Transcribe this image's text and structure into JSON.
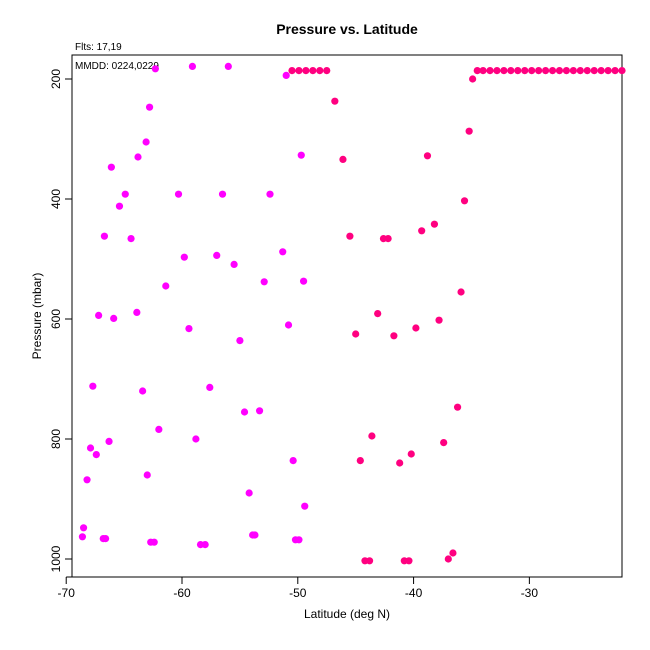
{
  "annotations": {
    "flts": "Flts: 17,19",
    "mmdd": "MMDD: 0224,0229"
  },
  "chart_data": {
    "type": "scatter",
    "title": "Pressure vs. Latitude",
    "xlabel": "Latitude (deg N)",
    "ylabel": "Pressure (mbar)",
    "xlim": [
      -69.5,
      -22
    ],
    "ylim": [
      1030,
      160
    ],
    "y_reversed": true,
    "xticks": [
      -70,
      -60,
      -50,
      -40,
      -30
    ],
    "yticks": [
      200,
      400,
      600,
      800,
      1000
    ],
    "grid": false,
    "series": [
      {
        "color": "#ff00ff",
        "points": [
          [
            -68.6,
            963
          ],
          [
            -68.5,
            948
          ],
          [
            -68.2,
            868
          ],
          [
            -67.9,
            815
          ],
          [
            -67.7,
            712
          ],
          [
            -67.4,
            826
          ],
          [
            -67.2,
            594
          ],
          [
            -66.8,
            966
          ],
          [
            -66.6,
            966
          ],
          [
            -66.7,
            462
          ],
          [
            -66.3,
            804
          ],
          [
            -66.1,
            347
          ],
          [
            -65.9,
            599
          ],
          [
            -65.4,
            412
          ],
          [
            -64.9,
            392
          ],
          [
            -64.4,
            466
          ],
          [
            -63.9,
            589
          ],
          [
            -63.8,
            330
          ],
          [
            -63.4,
            720
          ],
          [
            -63.1,
            305
          ],
          [
            -63.0,
            860
          ],
          [
            -62.8,
            247
          ],
          [
            -62.7,
            972
          ],
          [
            -62.4,
            972
          ],
          [
            -62.3,
            183
          ],
          [
            -62.0,
            784
          ],
          [
            -61.4,
            545
          ],
          [
            -60.3,
            392
          ],
          [
            -59.8,
            497
          ],
          [
            -59.4,
            616
          ],
          [
            -59.1,
            179
          ],
          [
            -58.8,
            800
          ],
          [
            -58.4,
            976
          ],
          [
            -58.0,
            976
          ],
          [
            -57.6,
            714
          ],
          [
            -57.0,
            494
          ],
          [
            -56.5,
            392
          ],
          [
            -56.0,
            179
          ],
          [
            -55.5,
            509
          ],
          [
            -55.0,
            636
          ],
          [
            -54.6,
            755
          ],
          [
            -54.2,
            890
          ],
          [
            -53.9,
            960
          ],
          [
            -53.7,
            960
          ],
          [
            -53.3,
            753
          ],
          [
            -52.9,
            538
          ],
          [
            -52.4,
            392
          ],
          [
            -51.3,
            488
          ],
          [
            -51.0,
            194
          ],
          [
            -50.8,
            610
          ],
          [
            -50.4,
            836
          ],
          [
            -50.2,
            968
          ],
          [
            -49.9,
            968
          ],
          [
            -49.7,
            327
          ],
          [
            -49.5,
            537
          ],
          [
            -49.4,
            912
          ]
        ]
      },
      {
        "color": "#ff0080",
        "points": [
          [
            -50.5,
            186
          ],
          [
            -49.9,
            186
          ],
          [
            -49.3,
            186
          ],
          [
            -48.7,
            186
          ],
          [
            -48.1,
            186
          ],
          [
            -47.5,
            186
          ],
          [
            -46.8,
            237
          ],
          [
            -46.1,
            334
          ],
          [
            -45.5,
            462
          ],
          [
            -45.0,
            625
          ],
          [
            -44.6,
            836
          ],
          [
            -44.2,
            1003
          ],
          [
            -43.8,
            1003
          ],
          [
            -43.6,
            795
          ],
          [
            -43.1,
            591
          ],
          [
            -42.6,
            466
          ],
          [
            -42.2,
            466
          ],
          [
            -41.7,
            628
          ],
          [
            -41.2,
            840
          ],
          [
            -40.8,
            1003
          ],
          [
            -40.4,
            1003
          ],
          [
            -40.2,
            825
          ],
          [
            -39.8,
            615
          ],
          [
            -39.3,
            453
          ],
          [
            -38.8,
            328
          ],
          [
            -38.2,
            442
          ],
          [
            -37.8,
            602
          ],
          [
            -37.4,
            806
          ],
          [
            -37.0,
            1000
          ],
          [
            -36.6,
            990
          ],
          [
            -36.2,
            747
          ],
          [
            -35.9,
            555
          ],
          [
            -35.6,
            403
          ],
          [
            -35.2,
            287
          ],
          [
            -34.9,
            200
          ],
          [
            -34.5,
            186
          ],
          [
            -34.0,
            186
          ],
          [
            -33.4,
            186
          ],
          [
            -32.8,
            186
          ],
          [
            -32.2,
            186
          ],
          [
            -31.6,
            186
          ],
          [
            -31.0,
            186
          ],
          [
            -30.4,
            186
          ],
          [
            -29.8,
            186
          ],
          [
            -29.2,
            186
          ],
          [
            -28.6,
            186
          ],
          [
            -28.0,
            186
          ],
          [
            -27.4,
            186
          ],
          [
            -26.8,
            186
          ],
          [
            -26.2,
            186
          ],
          [
            -25.6,
            186
          ],
          [
            -25.0,
            186
          ],
          [
            -24.4,
            186
          ],
          [
            -23.8,
            186
          ],
          [
            -23.2,
            186
          ],
          [
            -22.6,
            186
          ],
          [
            -22.0,
            186
          ]
        ]
      }
    ]
  }
}
